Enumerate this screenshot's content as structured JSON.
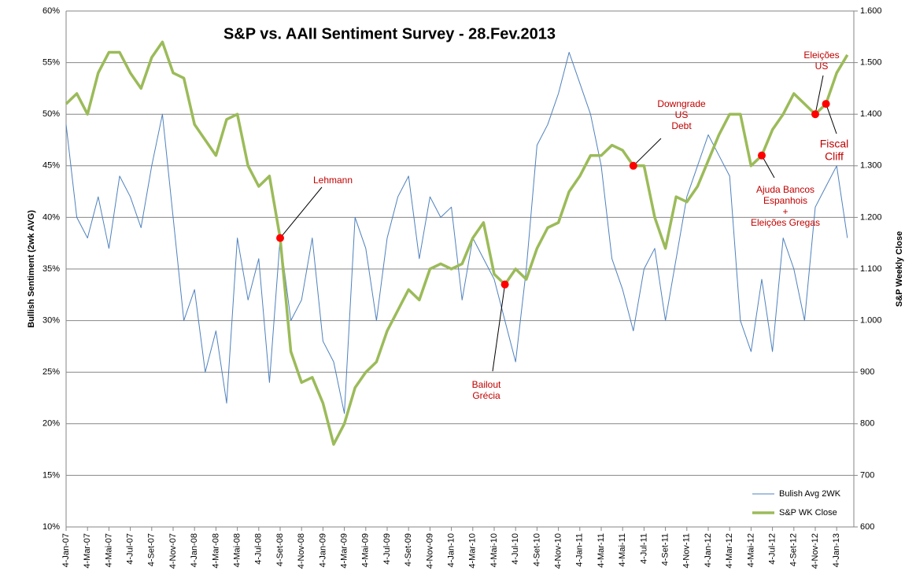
{
  "chart_data": {
    "type": "line",
    "title": "S&P vs. AAII  Sentiment Survey - 28.Fev.2013",
    "y_label": "Bullish Sentiment (2wk AVG)",
    "y2_label": "S&P Weekly Close",
    "categories": [
      "4-Jan-07",
      null,
      "4-Mar-07",
      null,
      "4-Mai-07",
      null,
      "4-Jul-07",
      null,
      "4-Set-07",
      null,
      "4-Nov-07",
      null,
      "4-Jan-08",
      null,
      "4-Mar-08",
      null,
      "4-Mai-08",
      null,
      "4-Jul-08",
      null,
      "4-Set-08",
      null,
      "4-Nov-08",
      null,
      "4-Jan-09",
      null,
      "4-Mar-09",
      null,
      "4-Mai-09",
      null,
      "4-Jul-09",
      null,
      "4-Set-09",
      null,
      "4-Nov-09",
      null,
      "4-Jan-10",
      null,
      "4-Mar-10",
      null,
      "4-Mai-10",
      null,
      "4-Jul-10",
      null,
      "4-Set-10",
      null,
      "4-Nov-10",
      null,
      "4-Jan-11",
      null,
      "4-Mar-11",
      null,
      "4-Mai-11",
      null,
      "4-Jul-11",
      null,
      "4-Set-11",
      null,
      "4-Nov-11",
      null,
      "4-Jan-12",
      null,
      "4-Mar-12",
      null,
      "4-Mai-12",
      null,
      "4-Jul-12",
      null,
      "4-Set-12",
      null,
      "4-Nov-12",
      null,
      "4-Jan-13",
      null
    ],
    "series": [
      {
        "name": "Bulish Avg 2WK",
        "color": "#4f81bd",
        "values": [
          49,
          40,
          38,
          42,
          37,
          44,
          42,
          39,
          45,
          50,
          40,
          30,
          33,
          25,
          29,
          22,
          38,
          32,
          36,
          24,
          38,
          30,
          32,
          38,
          28,
          26,
          21,
          40,
          37,
          30,
          38,
          42,
          44,
          36,
          42,
          40,
          41,
          32,
          38,
          36,
          34,
          30,
          26,
          35,
          47,
          49,
          52,
          56,
          53,
          50,
          45,
          36,
          33,
          29,
          35,
          37,
          30,
          36,
          42,
          45,
          48,
          46,
          44,
          30,
          27,
          34,
          27,
          38,
          35,
          30,
          41,
          43,
          45,
          38
        ]
      },
      {
        "name": "S&P WK Close",
        "color": "#9bbb59",
        "axis": "y2",
        "values": [
          1420,
          1440,
          1400,
          1480,
          1520,
          1520,
          1480,
          1450,
          1510,
          1540,
          1480,
          1470,
          1380,
          1350,
          1320,
          1390,
          1400,
          1300,
          1260,
          1280,
          1160,
          940,
          880,
          890,
          840,
          760,
          800,
          870,
          900,
          920,
          980,
          1020,
          1060,
          1040,
          1100,
          1110,
          1100,
          1110,
          1160,
          1190,
          1090,
          1070,
          1100,
          1080,
          1140,
          1180,
          1190,
          1250,
          1280,
          1320,
          1320,
          1340,
          1330,
          1300,
          1300,
          1200,
          1140,
          1240,
          1230,
          1260,
          1310,
          1360,
          1400,
          1400,
          1300,
          1320,
          1370,
          1400,
          1440,
          1420,
          1400,
          1420,
          1480,
          1515
        ]
      }
    ],
    "ylim": [
      10,
      60
    ],
    "yticks": [
      {
        "value": 10,
        "label": "10%"
      },
      {
        "value": 15,
        "label": "15%"
      },
      {
        "value": 20,
        "label": "20%"
      },
      {
        "value": 25,
        "label": "25%"
      },
      {
        "value": 30,
        "label": "30%"
      },
      {
        "value": 35,
        "label": "35%"
      },
      {
        "value": 40,
        "label": "40%"
      },
      {
        "value": 45,
        "label": "45%"
      },
      {
        "value": 50,
        "label": "50%"
      },
      {
        "value": 55,
        "label": "55%"
      },
      {
        "value": 60,
        "label": "60%"
      }
    ],
    "y2lim": [
      600,
      1600
    ],
    "y2ticks": [
      600,
      700,
      800,
      900,
      {
        "value": 1000,
        "label": "1.000"
      },
      {
        "value": 1100,
        "label": "1.100"
      },
      {
        "value": 1200,
        "label": "1.200"
      },
      {
        "value": 1300,
        "label": "1.300"
      },
      {
        "value": 1400,
        "label": "1.400"
      },
      {
        "value": 1500,
        "label": "1.500"
      },
      {
        "value": 1600,
        "label": "1.600"
      }
    ],
    "grid": true,
    "legend": "lower right",
    "annotations": [
      {
        "lines": [
          "Lehmann"
        ]
      },
      {
        "lines": [
          "Bailout",
          "Grécia"
        ]
      },
      {
        "lines": [
          "Downgrade",
          "US",
          "Debt"
        ]
      },
      {
        "lines": [
          "Ajuda Bancos",
          "Espanhois",
          "+",
          "Eleições Gregas"
        ]
      },
      {
        "lines": [
          "Eleições",
          "US"
        ]
      },
      {
        "lines": [
          "Fiscal",
          "Cliff"
        ]
      }
    ]
  }
}
